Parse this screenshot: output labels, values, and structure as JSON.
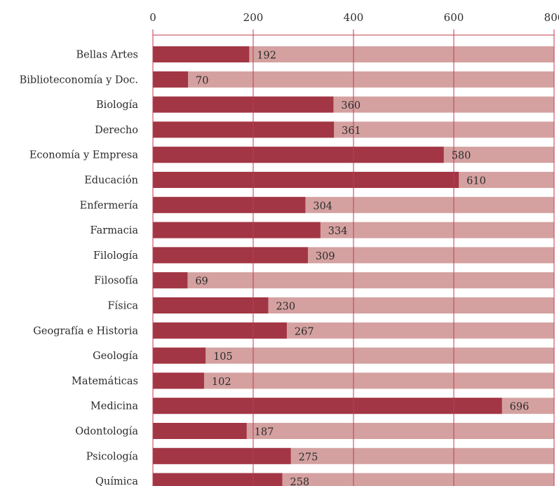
{
  "chart_data": {
    "type": "bar",
    "orientation": "horizontal",
    "categories": [
      "Bellas Artes",
      "Biblioteconomía y Doc.",
      "Biología",
      "Derecho",
      "Economía y Empresa",
      "Educación",
      "Enfermería",
      "Farmacia",
      "Filología",
      "Filosofía",
      "Física",
      "Geografía e Historia",
      "Geología",
      "Matemáticas",
      "Medicina",
      "Odontología",
      "Psicología",
      "Química"
    ],
    "values": [
      192,
      70,
      360,
      361,
      580,
      610,
      304,
      334,
      309,
      69,
      230,
      267,
      105,
      102,
      696,
      187,
      275,
      258
    ],
    "x_ticks": [
      "0",
      "200",
      "400",
      "600",
      "800"
    ],
    "xlim": [
      0,
      800
    ],
    "grid": true,
    "title": "",
    "xlabel": "",
    "ylabel": "",
    "colors": {
      "bar": "#a23645",
      "track": "#d4a1a0",
      "grid": "#c23a4c",
      "text": "#2b2b2b"
    }
  }
}
